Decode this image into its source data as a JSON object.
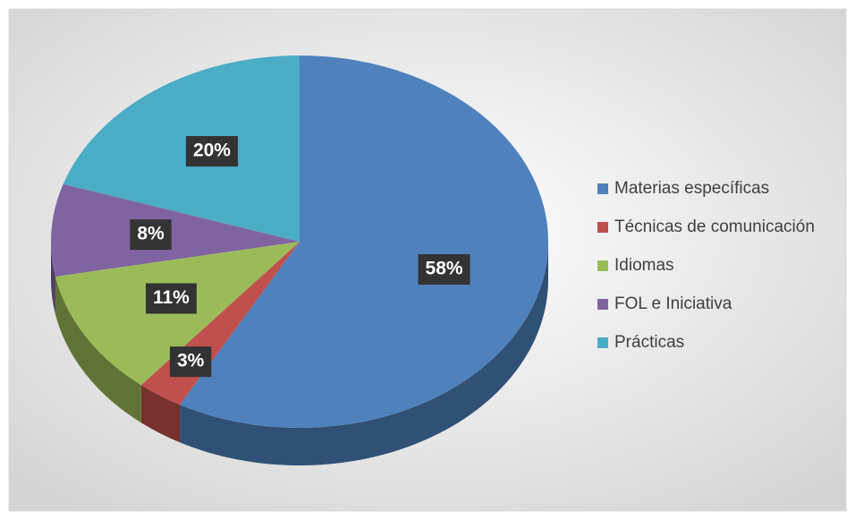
{
  "chart_data": {
    "type": "pie",
    "categories": [
      "Materias específicas",
      "Técnicas de comunicación",
      "Idiomas",
      "FOL e Iniciativa",
      "Prácticas"
    ],
    "values": [
      58,
      3,
      11,
      8,
      20
    ],
    "value_labels": [
      "58%",
      "3%",
      "11%",
      "8%",
      "20%"
    ],
    "colors": [
      "#4f81bd",
      "#c0504d",
      "#9bbb59",
      "#8064a2",
      "#4bacc6"
    ],
    "legend": "right"
  }
}
